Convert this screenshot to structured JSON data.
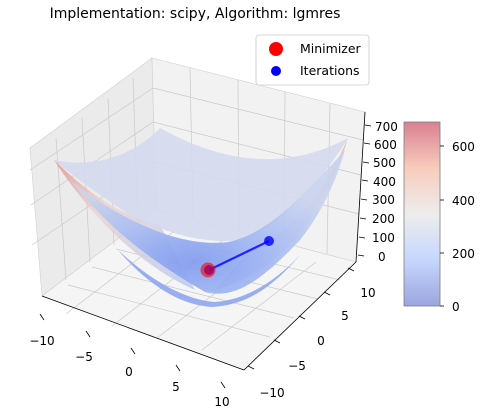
{
  "title": "Implementation: scipy, Algorithm: lgmres",
  "chart_data": {
    "type": "surface3d",
    "title": "Implementation: scipy, Algorithm: lgmres",
    "x_ticks": [
      "−10",
      "−5",
      "0",
      "5",
      "10"
    ],
    "y_ticks": [
      "−10",
      "−5",
      "0",
      "5",
      "10"
    ],
    "z_ticks": [
      "0",
      "100",
      "200",
      "300",
      "400",
      "500",
      "600",
      "700"
    ],
    "xlim": [
      -10,
      10
    ],
    "ylim": [
      -10,
      10
    ],
    "zlim": [
      0,
      700
    ],
    "legend": {
      "position": "top-right",
      "entries": [
        {
          "label": "Minimizer",
          "color": "#ff0000",
          "marker": "circle-large"
        },
        {
          "label": "Iterations",
          "color": "#0000ff",
          "marker": "circle"
        }
      ]
    },
    "colorbar": {
      "colormap": "coolwarm",
      "ticks": [
        "0",
        "200",
        "400",
        "600"
      ],
      "range": [
        0,
        690
      ]
    },
    "iteration_path": [
      {
        "x": 2.8,
        "y": 1.4,
        "z": 40
      },
      {
        "x": 0.0,
        "y": 0.0,
        "z": 0
      }
    ],
    "minimizer": {
      "x": 0.0,
      "y": 0.0,
      "z": 0
    }
  },
  "colors": {
    "surface_low": "#3b4cc0",
    "surface_mid": "#dddddd",
    "surface_high": "#b40426",
    "path_line": "#0000ff",
    "minimizer": "#ff0000"
  }
}
